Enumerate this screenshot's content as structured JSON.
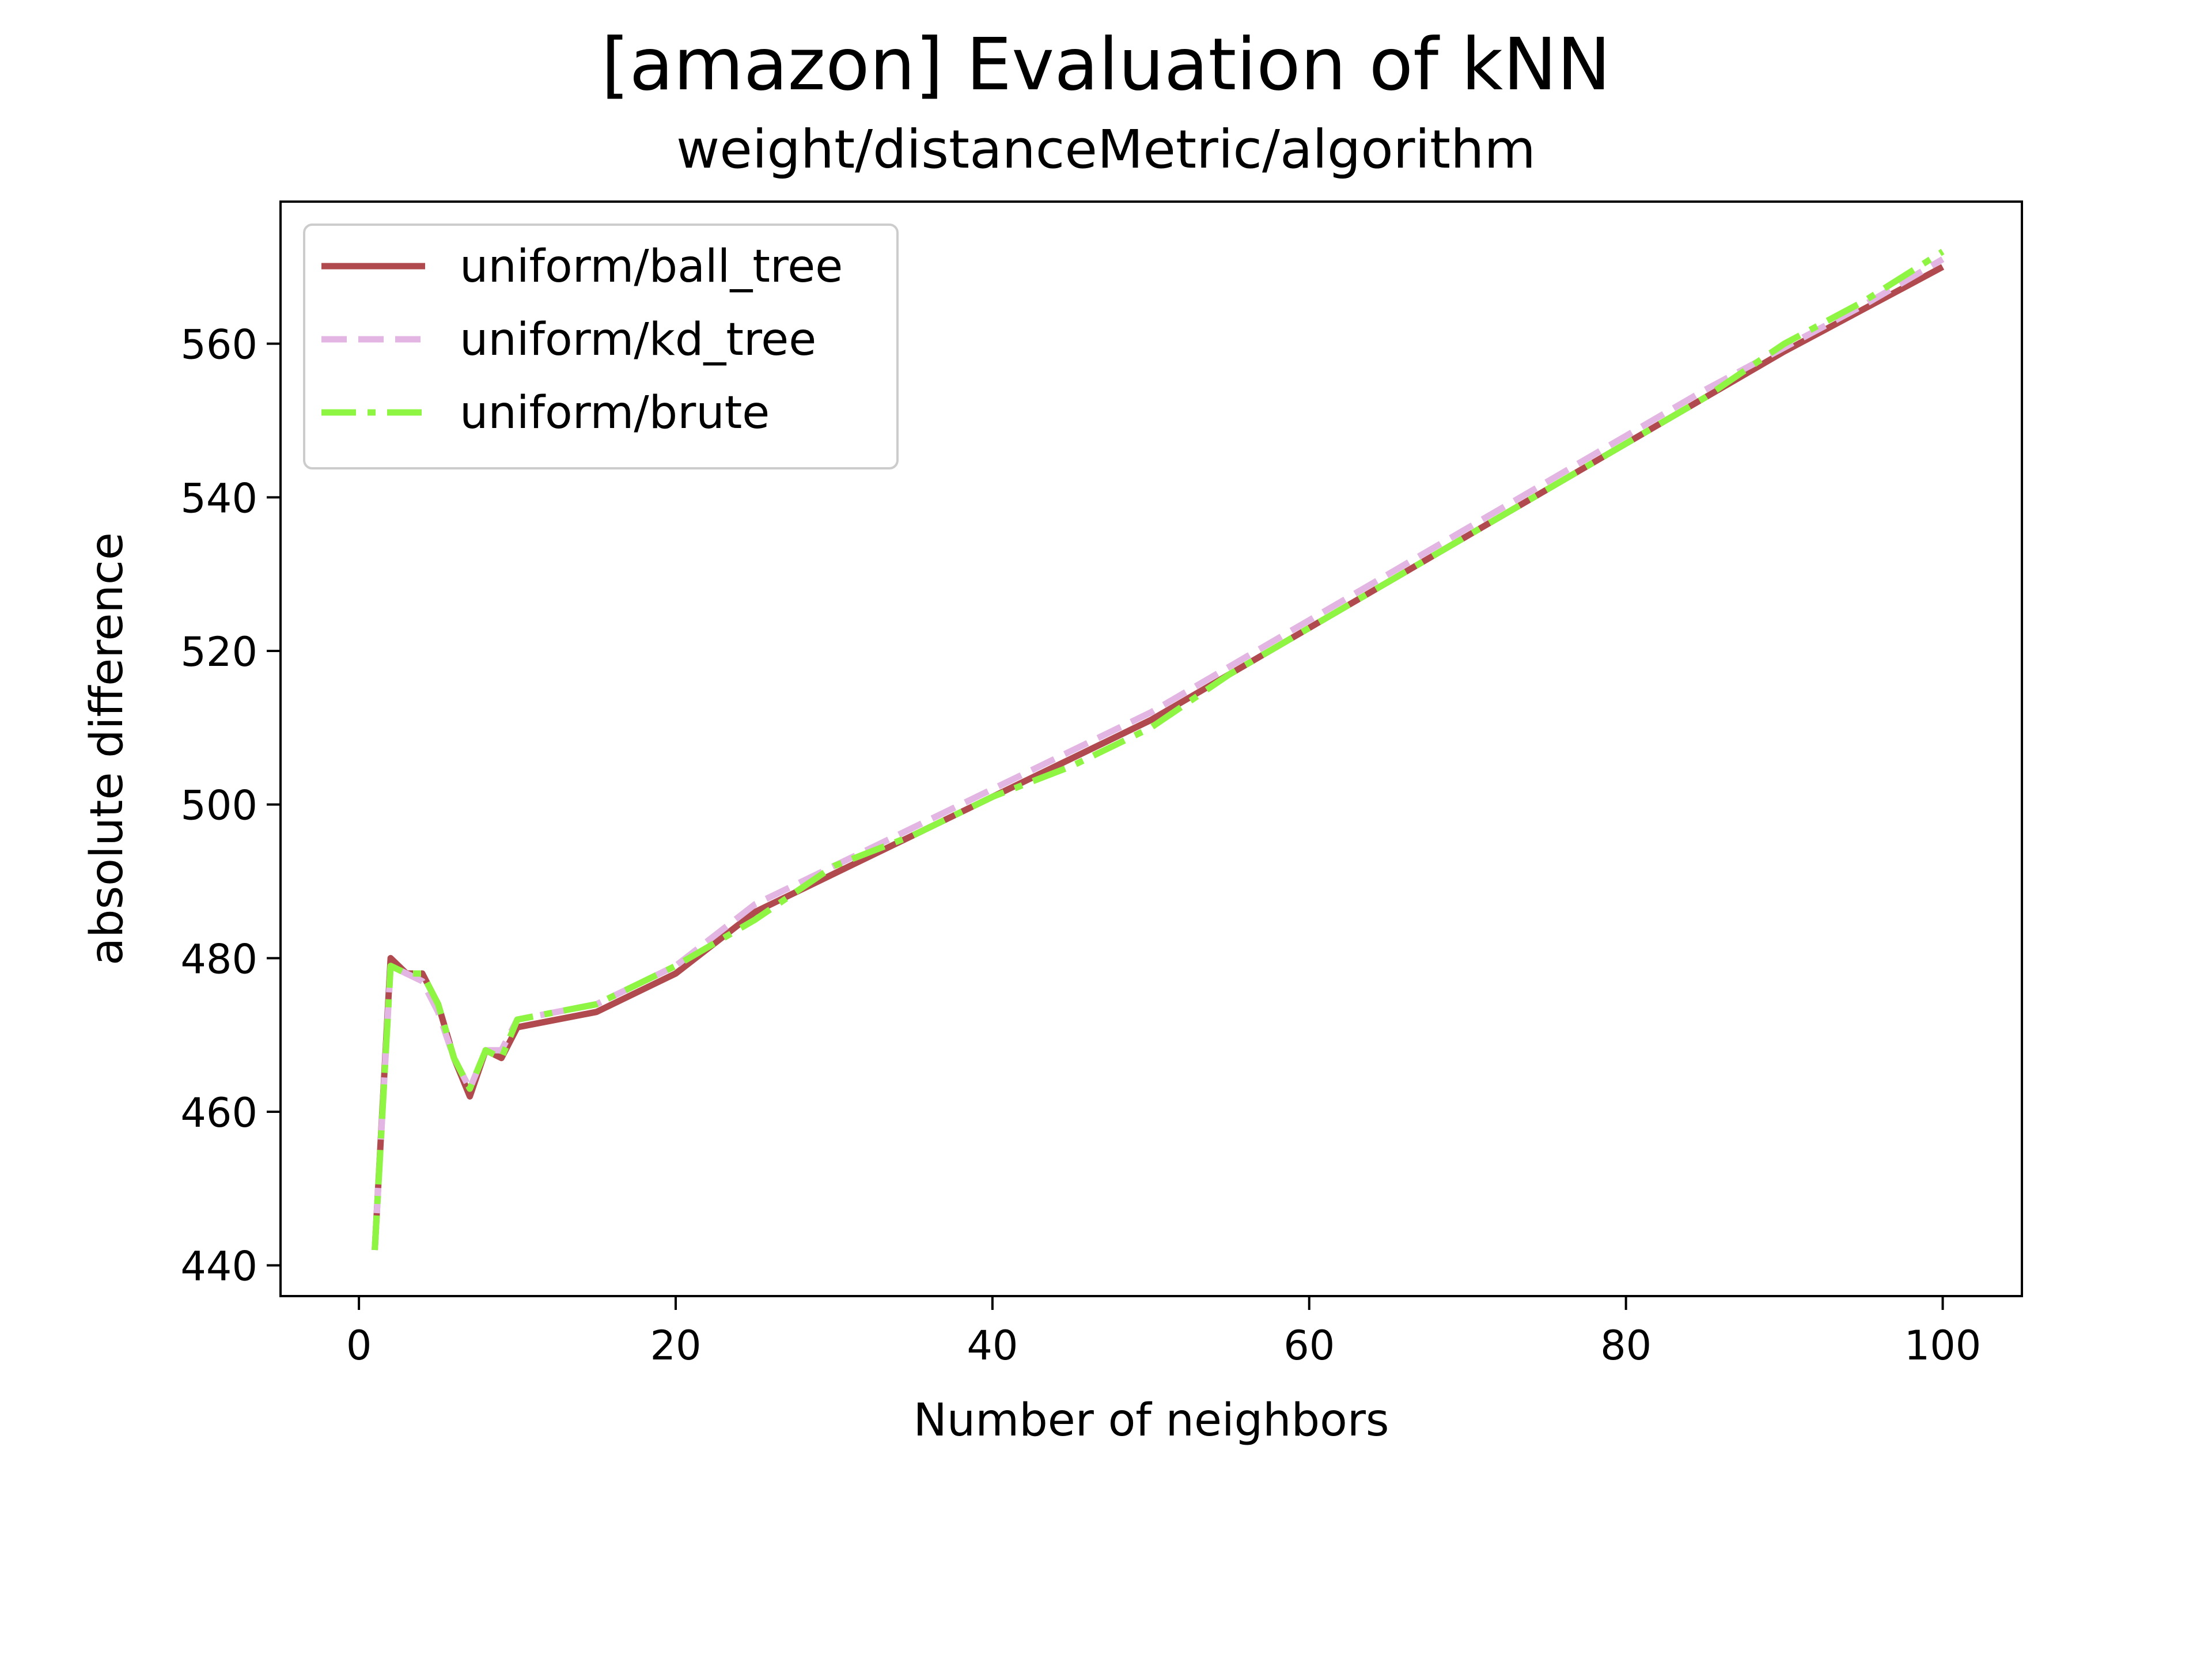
{
  "title": "[amazon] Evaluation of kNN",
  "subtitle": "weight/distanceMetric/algorithm",
  "chart_data": {
    "type": "line",
    "xlabel": "Number of neighbors",
    "ylabel": "absolute difference",
    "xlim": [
      -4.95,
      105.0
    ],
    "ylim": [
      436.0,
      578.5
    ],
    "xticks": [
      0,
      20,
      40,
      60,
      80,
      100
    ],
    "yticks": [
      440,
      460,
      480,
      500,
      520,
      540,
      560
    ],
    "grid": false,
    "legend_position": "upper-left",
    "series": [
      {
        "name": "uniform/ball_tree",
        "color": "#b04a4e",
        "style": "solid",
        "x": [
          1,
          2,
          3,
          4,
          5,
          6,
          7,
          8,
          9,
          10,
          15,
          20,
          25,
          30,
          35,
          40,
          45,
          50,
          55,
          60,
          65,
          70,
          75,
          80,
          85,
          90,
          95,
          100
        ],
        "y": [
          442,
          480,
          478,
          478,
          474,
          467,
          462,
          468,
          467,
          471,
          473,
          478,
          486,
          491,
          496,
          501,
          506,
          511,
          517,
          523,
          529,
          535,
          541,
          547,
          553,
          559,
          564.5,
          570
        ]
      },
      {
        "name": "uniform/kd_tree",
        "color": "#e2b5e3",
        "style": "dashed",
        "x": [
          1,
          2,
          3,
          4,
          5,
          6,
          7,
          8,
          9,
          10,
          15,
          20,
          25,
          30,
          35,
          40,
          45,
          50,
          55,
          60,
          65,
          70,
          75,
          80,
          85,
          90,
          95,
          100
        ],
        "y": [
          442,
          479,
          478,
          477,
          473,
          467,
          463,
          468,
          468,
          472,
          474,
          479,
          487,
          492,
          497,
          502,
          507,
          512,
          518,
          524,
          530,
          536,
          542,
          548,
          554,
          559.5,
          565,
          571
        ]
      },
      {
        "name": "uniform/brute",
        "color": "#8ef542",
        "style": "dashdot",
        "x": [
          1,
          2,
          3,
          4,
          5,
          6,
          7,
          8,
          9,
          10,
          15,
          20,
          25,
          30,
          35,
          40,
          45,
          50,
          55,
          60,
          65,
          70,
          75,
          80,
          85,
          90,
          95,
          100
        ],
        "y": [
          442,
          479,
          478,
          478,
          474,
          467,
          463,
          468,
          467,
          472,
          474,
          479,
          485,
          492,
          496,
          501,
          505,
          510,
          517,
          523,
          529,
          535,
          541,
          547,
          553,
          560,
          565.5,
          572
        ]
      }
    ]
  }
}
